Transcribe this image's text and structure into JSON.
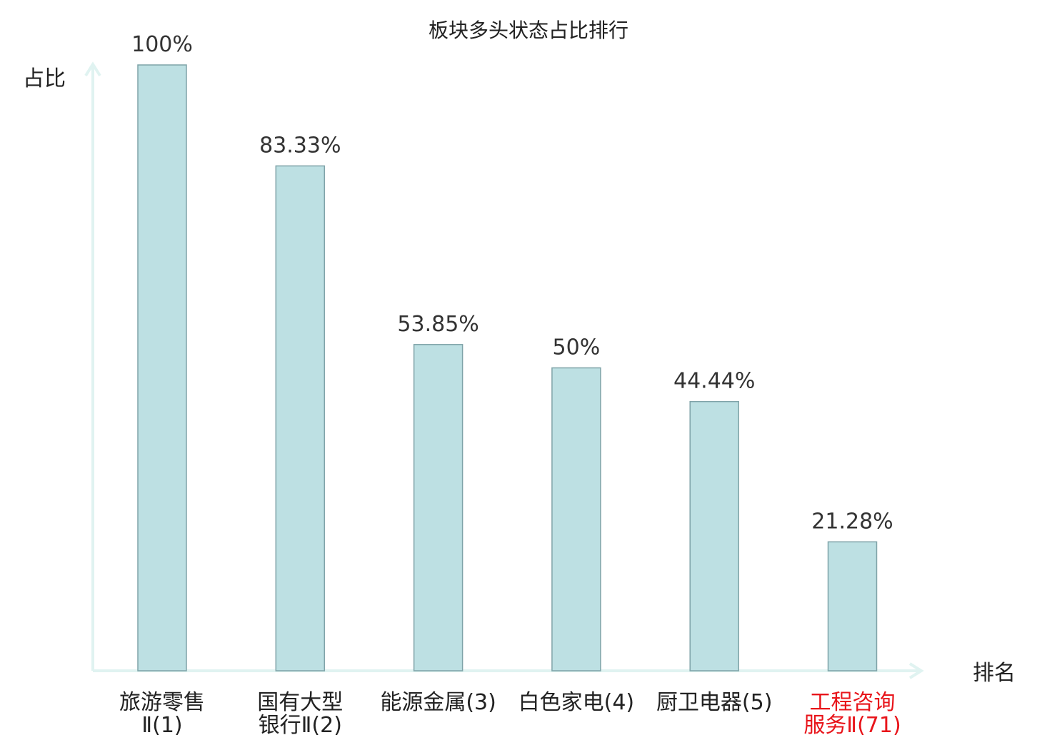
{
  "chart_data": {
    "type": "bar",
    "title": "板块多头状态占比排行",
    "ylabel": "占比",
    "xlabel": "排名",
    "ylim": [
      0,
      100
    ],
    "grid": false,
    "categories": [
      [
        "旅游零售",
        "Ⅱ(1)"
      ],
      [
        "国有大型",
        "银行Ⅱ(2)"
      ],
      [
        "能源金属(3)"
      ],
      [
        "白色家电(4)"
      ],
      [
        "厨卫电器(5)"
      ],
      [
        "工程咨询",
        "服务Ⅱ(71)"
      ]
    ],
    "values": [
      100,
      83.33,
      53.85,
      50,
      44.44,
      21.28
    ],
    "value_labels": [
      "100%",
      "83.33%",
      "53.85%",
      "50%",
      "44.44%",
      "21.28%"
    ],
    "highlight_index": 5,
    "colors": {
      "bar_fill": "#bde0e3",
      "bar_stroke": "#7fa3a8",
      "axis": "#e0f3f1",
      "text": "#222222",
      "value_text": "#333333",
      "highlight_text": "#e8141a"
    }
  }
}
